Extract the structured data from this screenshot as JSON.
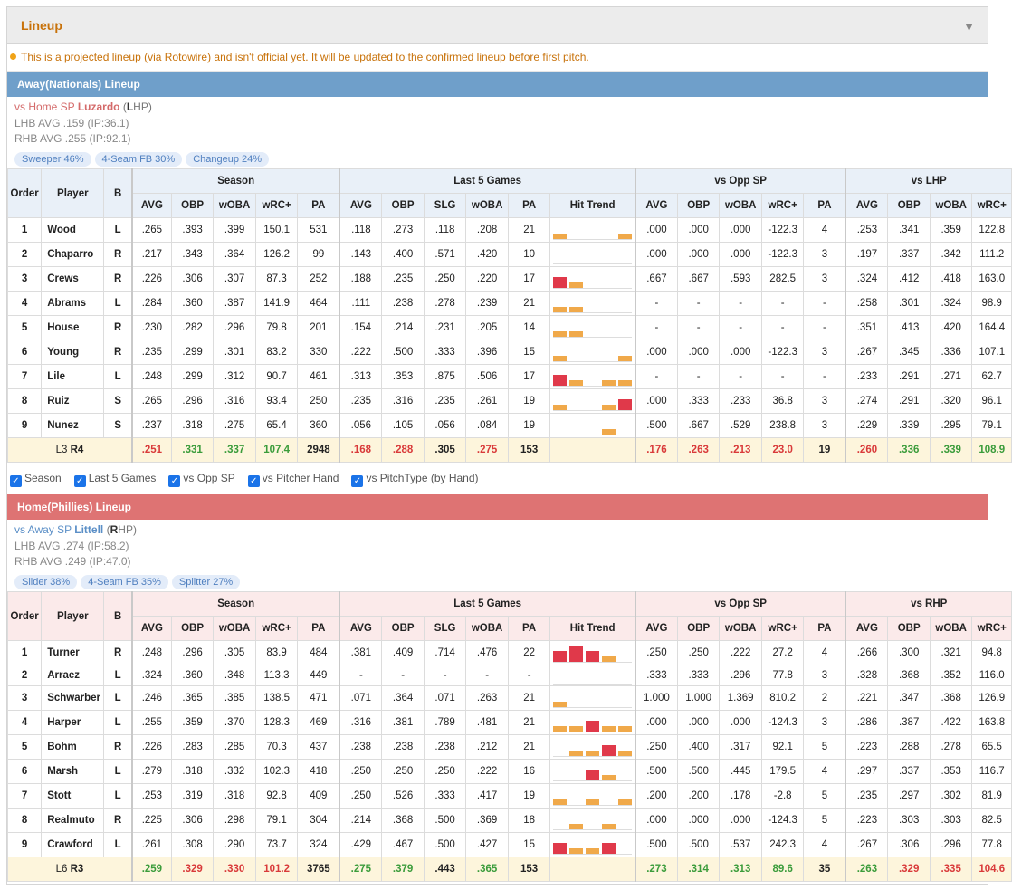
{
  "panel": {
    "title": "Lineup",
    "notice": "This is a projected lineup (via Rotowire) and isn't official yet. It will be updated to the confirmed lineup before first pitch."
  },
  "colors": {
    "away": "#6f9fca",
    "home": "#de7373",
    "accent": "#c8720a",
    "bar_orange": "#f0a94a",
    "bar_red": "#e0394a"
  },
  "filters": [
    "Season",
    "Last 5 Games",
    "vs Opp SP",
    "vs Pitcher Hand",
    "vs PitchType (by Hand)"
  ],
  "headers": {
    "groups": [
      "Season",
      "Last 5 Games",
      "vs Opp SP"
    ],
    "base": [
      "Order",
      "Player",
      "B"
    ],
    "season": [
      "AVG",
      "OBP",
      "wOBA",
      "wRC+",
      "PA"
    ],
    "last5": [
      "AVG",
      "OBP",
      "SLG",
      "wOBA",
      "PA",
      "Hit Trend"
    ],
    "opp": [
      "AVG",
      "OBP",
      "wOBA",
      "wRC+",
      "PA"
    ],
    "hand": [
      "AVG",
      "OBP",
      "wOBA",
      "wRC+"
    ]
  },
  "away": {
    "bar": "Away(Nationals) Lineup",
    "sp_prefix": "vs Home SP ",
    "sp_name": "Luzardo",
    "sp_hand_open": " (",
    "sp_hand_letter": "L",
    "sp_hand_rest": "HP)",
    "lhb": "LHB AVG .159 (IP:36.1)",
    "rhb": "RHB AVG .255 (IP:92.1)",
    "pills": [
      "Sweeper 46%",
      "4-Seam FB 30%",
      "Changeup 24%"
    ],
    "hand_group": "vs LHP",
    "rows": [
      {
        "o": "1",
        "n": "Wood",
        "b": "L",
        "s": [
          ".265",
          ".393",
          ".399",
          "150.1",
          "531"
        ],
        "l": [
          ".118",
          ".273",
          ".118",
          ".208",
          "21"
        ],
        "t": [
          2,
          0,
          0,
          0,
          2
        ],
        "v": [
          ".000",
          ".000",
          ".000",
          "-122.3",
          "4"
        ],
        "h": [
          ".253",
          ".341",
          ".359",
          "122.8"
        ]
      },
      {
        "o": "2",
        "n": "Chaparro",
        "b": "R",
        "s": [
          ".217",
          ".343",
          ".364",
          "126.2",
          "99"
        ],
        "l": [
          ".143",
          ".400",
          ".571",
          ".420",
          "10"
        ],
        "t": [
          0,
          0,
          0,
          0,
          0
        ],
        "v": [
          ".000",
          ".000",
          ".000",
          "-122.3",
          "3"
        ],
        "h": [
          ".197",
          ".337",
          ".342",
          "111.2"
        ]
      },
      {
        "o": "3",
        "n": "Crews",
        "b": "R",
        "s": [
          ".226",
          ".306",
          ".307",
          "87.3",
          "252"
        ],
        "l": [
          ".188",
          ".235",
          ".250",
          ".220",
          "17"
        ],
        "t": [
          4,
          2,
          0,
          0,
          0
        ],
        "v": [
          ".667",
          ".667",
          ".593",
          "282.5",
          "3"
        ],
        "h": [
          ".324",
          ".412",
          ".418",
          "163.0"
        ]
      },
      {
        "o": "4",
        "n": "Abrams",
        "b": "L",
        "s": [
          ".284",
          ".360",
          ".387",
          "141.9",
          "464"
        ],
        "l": [
          ".111",
          ".238",
          ".278",
          ".239",
          "21"
        ],
        "t": [
          2,
          2,
          0,
          0,
          0
        ],
        "v": [
          "-",
          "-",
          "-",
          "-",
          "-"
        ],
        "h": [
          ".258",
          ".301",
          ".324",
          "98.9"
        ]
      },
      {
        "o": "5",
        "n": "House",
        "b": "R",
        "s": [
          ".230",
          ".282",
          ".296",
          "79.8",
          "201"
        ],
        "l": [
          ".154",
          ".214",
          ".231",
          ".205",
          "14"
        ],
        "t": [
          2,
          2,
          0,
          0,
          0
        ],
        "v": [
          "-",
          "-",
          "-",
          "-",
          "-"
        ],
        "h": [
          ".351",
          ".413",
          ".420",
          "164.4"
        ]
      },
      {
        "o": "6",
        "n": "Young",
        "b": "R",
        "s": [
          ".235",
          ".299",
          ".301",
          "83.2",
          "330"
        ],
        "l": [
          ".222",
          ".500",
          ".333",
          ".396",
          "15"
        ],
        "t": [
          2,
          0,
          0,
          0,
          2
        ],
        "v": [
          ".000",
          ".000",
          ".000",
          "-122.3",
          "3"
        ],
        "h": [
          ".267",
          ".345",
          ".336",
          "107.1"
        ]
      },
      {
        "o": "7",
        "n": "Lile",
        "b": "L",
        "s": [
          ".248",
          ".299",
          ".312",
          "90.7",
          "461"
        ],
        "l": [
          ".313",
          ".353",
          ".875",
          ".506",
          "17"
        ],
        "t": [
          4,
          2,
          0,
          2,
          2
        ],
        "v": [
          "-",
          "-",
          "-",
          "-",
          "-"
        ],
        "h": [
          ".233",
          ".291",
          ".271",
          "62.7"
        ]
      },
      {
        "o": "8",
        "n": "Ruiz",
        "b": "S",
        "s": [
          ".265",
          ".296",
          ".316",
          "93.4",
          "250"
        ],
        "l": [
          ".235",
          ".316",
          ".235",
          ".261",
          "19"
        ],
        "t": [
          2,
          0,
          0,
          2,
          4
        ],
        "v": [
          ".000",
          ".333",
          ".233",
          "36.8",
          "3"
        ],
        "h": [
          ".274",
          ".291",
          ".320",
          "96.1"
        ]
      },
      {
        "o": "9",
        "n": "Nunez",
        "b": "S",
        "s": [
          ".237",
          ".318",
          ".275",
          "65.4",
          "360"
        ],
        "l": [
          ".056",
          ".105",
          ".056",
          ".084",
          "19"
        ],
        "t": [
          0,
          0,
          0,
          2,
          0
        ],
        "v": [
          ".500",
          ".667",
          ".529",
          "238.8",
          "3"
        ],
        "h": [
          ".229",
          ".339",
          ".295",
          "79.1"
        ]
      }
    ],
    "sum": {
      "lr_l": "L3 ",
      "lr_r": "R4",
      "s": [
        ".251",
        ".331",
        ".337",
        "107.4",
        "2948"
      ],
      "sc": [
        "r",
        "g",
        "g",
        "g",
        "k"
      ],
      "l": [
        ".168",
        ".288",
        ".305",
        ".275",
        "153"
      ],
      "lc": [
        "r",
        "r",
        "k",
        "r",
        "k"
      ],
      "v": [
        ".176",
        ".263",
        ".213",
        "23.0",
        "19"
      ],
      "vc": [
        "r",
        "r",
        "r",
        "r",
        "k"
      ],
      "h": [
        ".260",
        ".336",
        ".339",
        "108.9"
      ],
      "hc": [
        "r",
        "g",
        "g",
        "g"
      ]
    }
  },
  "home": {
    "bar": "Home(Phillies) Lineup",
    "sp_prefix": "vs Away SP ",
    "sp_name": "Littell",
    "sp_hand_open": " (",
    "sp_hand_letter": "R",
    "sp_hand_rest": "HP)",
    "lhb": "LHB AVG .274 (IP:58.2)",
    "rhb": "RHB AVG .249 (IP:47.0)",
    "pills": [
      "Slider 38%",
      "4-Seam FB 35%",
      "Splitter 27%"
    ],
    "hand_group": "vs RHP",
    "rows": [
      {
        "o": "1",
        "n": "Turner",
        "b": "R",
        "s": [
          ".248",
          ".296",
          ".305",
          "83.9",
          "484"
        ],
        "l": [
          ".381",
          ".409",
          ".714",
          ".476",
          "22"
        ],
        "t": [
          4,
          6,
          4,
          2,
          0
        ],
        "v": [
          ".250",
          ".250",
          ".222",
          "27.2",
          "4"
        ],
        "h": [
          ".266",
          ".300",
          ".321",
          "94.8"
        ]
      },
      {
        "o": "2",
        "n": "Arraez",
        "b": "L",
        "s": [
          ".324",
          ".360",
          ".348",
          "113.3",
          "449"
        ],
        "l": [
          "-",
          "-",
          "-",
          "-",
          "-"
        ],
        "t": [
          0,
          0,
          0,
          0,
          0
        ],
        "v": [
          ".333",
          ".333",
          ".296",
          "77.8",
          "3"
        ],
        "h": [
          ".328",
          ".368",
          ".352",
          "116.0"
        ]
      },
      {
        "o": "3",
        "n": "Schwarber",
        "b": "L",
        "s": [
          ".246",
          ".365",
          ".385",
          "138.5",
          "471"
        ],
        "l": [
          ".071",
          ".364",
          ".071",
          ".263",
          "21"
        ],
        "t": [
          2,
          0,
          0,
          0,
          0
        ],
        "v": [
          "1.000",
          "1.000",
          "1.369",
          "810.2",
          "2"
        ],
        "h": [
          ".221",
          ".347",
          ".368",
          "126.9"
        ]
      },
      {
        "o": "4",
        "n": "Harper",
        "b": "L",
        "s": [
          ".255",
          ".359",
          ".370",
          "128.3",
          "469"
        ],
        "l": [
          ".316",
          ".381",
          ".789",
          ".481",
          "21"
        ],
        "t": [
          2,
          2,
          4,
          2,
          2
        ],
        "v": [
          ".000",
          ".000",
          ".000",
          "-124.3",
          "3"
        ],
        "h": [
          ".286",
          ".387",
          ".422",
          "163.8"
        ]
      },
      {
        "o": "5",
        "n": "Bohm",
        "b": "R",
        "s": [
          ".226",
          ".283",
          ".285",
          "70.3",
          "437"
        ],
        "l": [
          ".238",
          ".238",
          ".238",
          ".212",
          "21"
        ],
        "t": [
          0,
          2,
          2,
          4,
          2
        ],
        "v": [
          ".250",
          ".400",
          ".317",
          "92.1",
          "5"
        ],
        "h": [
          ".223",
          ".288",
          ".278",
          "65.5"
        ]
      },
      {
        "o": "6",
        "n": "Marsh",
        "b": "L",
        "s": [
          ".279",
          ".318",
          ".332",
          "102.3",
          "418"
        ],
        "l": [
          ".250",
          ".250",
          ".250",
          ".222",
          "16"
        ],
        "t": [
          0,
          0,
          4,
          2,
          0
        ],
        "v": [
          ".500",
          ".500",
          ".445",
          "179.5",
          "4"
        ],
        "h": [
          ".297",
          ".337",
          ".353",
          "116.7"
        ]
      },
      {
        "o": "7",
        "n": "Stott",
        "b": "L",
        "s": [
          ".253",
          ".319",
          ".318",
          "92.8",
          "409"
        ],
        "l": [
          ".250",
          ".526",
          ".333",
          ".417",
          "19"
        ],
        "t": [
          2,
          0,
          2,
          0,
          2
        ],
        "v": [
          ".200",
          ".200",
          ".178",
          "-2.8",
          "5"
        ],
        "h": [
          ".235",
          ".297",
          ".302",
          "81.9"
        ]
      },
      {
        "o": "8",
        "n": "Realmuto",
        "b": "R",
        "s": [
          ".225",
          ".306",
          ".298",
          "79.1",
          "304"
        ],
        "l": [
          ".214",
          ".368",
          ".500",
          ".369",
          "18"
        ],
        "t": [
          0,
          2,
          0,
          2,
          0
        ],
        "v": [
          ".000",
          ".000",
          ".000",
          "-124.3",
          "5"
        ],
        "h": [
          ".223",
          ".303",
          ".303",
          "82.5"
        ]
      },
      {
        "o": "9",
        "n": "Crawford",
        "b": "L",
        "s": [
          ".261",
          ".308",
          ".290",
          "73.7",
          "324"
        ],
        "l": [
          ".429",
          ".467",
          ".500",
          ".427",
          "15"
        ],
        "t": [
          4,
          2,
          2,
          4,
          0
        ],
        "v": [
          ".500",
          ".500",
          ".537",
          "242.3",
          "4"
        ],
        "h": [
          ".267",
          ".306",
          ".296",
          "77.8"
        ]
      }
    ],
    "sum": {
      "lr_l": "L6 ",
      "lr_r": "R3",
      "s": [
        ".259",
        ".329",
        ".330",
        "101.2",
        "3765"
      ],
      "sc": [
        "g",
        "r",
        "r",
        "r",
        "k"
      ],
      "l": [
        ".275",
        ".379",
        ".443",
        ".365",
        "153"
      ],
      "lc": [
        "g",
        "g",
        "k",
        "g",
        "k"
      ],
      "v": [
        ".273",
        ".314",
        ".313",
        "89.6",
        "35"
      ],
      "vc": [
        "g",
        "g",
        "g",
        "g",
        "k"
      ],
      "h": [
        ".263",
        ".329",
        ".335",
        "104.6"
      ],
      "hc": [
        "g",
        "r",
        "r",
        "r"
      ]
    }
  }
}
